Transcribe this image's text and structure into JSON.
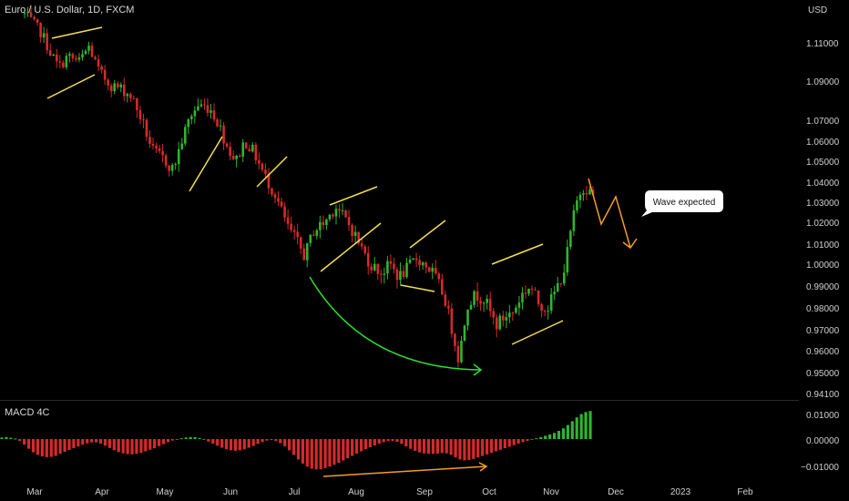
{
  "header": {
    "symbol_title": "Euro / U.S. Dollar, 1D, FXCM",
    "currency": "USD"
  },
  "chart_data": [
    {
      "type": "candlestick",
      "title": "Euro / U.S. Dollar, 1D, FXCM",
      "ylabel": "USD",
      "ylim": [
        0.941,
        1.125
      ],
      "yticks": [
        "1.11000",
        "1.09000",
        "1.07000",
        "1.06000",
        "1.05000",
        "1.04000",
        "1.03000",
        "1.02000",
        "1.01000",
        "1.00000",
        "0.99000",
        "0.98000",
        "0.97000",
        "0.96000",
        "0.95000",
        "0.94100"
      ],
      "xticks": [
        "Mar",
        "Apr",
        "May",
        "Jun",
        "Jul",
        "Aug",
        "Sep",
        "Oct",
        "Nov",
        "Dec",
        "2023",
        "Feb"
      ],
      "path": [
        [
          0,
          1.125
        ],
        [
          12,
          1.115
        ],
        [
          18,
          1.105
        ],
        [
          24,
          1.097
        ],
        [
          30,
          1.103
        ],
        [
          38,
          1.1
        ],
        [
          45,
          1.108
        ],
        [
          52,
          1.095
        ],
        [
          60,
          1.088
        ],
        [
          68,
          1.086
        ],
        [
          75,
          1.082
        ],
        [
          82,
          1.07
        ],
        [
          90,
          1.055
        ],
        [
          96,
          1.052
        ],
        [
          104,
          1.046
        ],
        [
          110,
          1.06
        ],
        [
          116,
          1.072
        ],
        [
          122,
          1.078
        ],
        [
          130,
          1.076
        ],
        [
          136,
          1.068
        ],
        [
          142,
          1.057
        ],
        [
          148,
          1.05
        ],
        [
          154,
          1.06
        ],
        [
          160,
          1.055
        ],
        [
          168,
          1.043
        ],
        [
          176,
          1.033
        ],
        [
          184,
          1.018
        ],
        [
          190,
          1.012
        ],
        [
          196,
          1.004
        ],
        [
          202,
          1.016
        ],
        [
          210,
          1.02
        ],
        [
          218,
          1.028
        ],
        [
          224,
          1.022
        ],
        [
          230,
          1.016
        ],
        [
          236,
          1.008
        ],
        [
          242,
          1.0
        ],
        [
          250,
          0.996
        ],
        [
          256,
          1.0
        ],
        [
          262,
          0.994
        ],
        [
          268,
          0.998
        ],
        [
          274,
          1.003
        ],
        [
          280,
          1.0
        ],
        [
          286,
          0.996
        ],
        [
          294,
          0.985
        ],
        [
          300,
          0.968
        ],
        [
          304,
          0.956
        ],
        [
          310,
          0.982
        ],
        [
          316,
          0.986
        ],
        [
          322,
          0.984
        ],
        [
          330,
          0.972
        ],
        [
          336,
          0.976
        ],
        [
          342,
          0.978
        ],
        [
          348,
          0.986
        ],
        [
          354,
          0.99
        ],
        [
          360,
          0.982
        ],
        [
          366,
          0.98
        ],
        [
          372,
          0.988
        ],
        [
          378,
          0.998
        ],
        [
          384,
          1.022
        ],
        [
          388,
          1.034
        ],
        [
          392,
          1.038
        ],
        [
          398,
          1.033
        ]
      ],
      "annotations": [
        {
          "text": "Wave expected"
        }
      ]
    },
    {
      "type": "histogram",
      "title": "MACD 4C",
      "ylim": [
        -0.014,
        0.013
      ],
      "yticks": [
        "0.01000",
        "0.00000",
        "−0.01000"
      ],
      "values": [
        0.0006,
        0.0008,
        0.0005,
        0.0002,
        -0.0008,
        -0.0022,
        -0.0038,
        -0.0052,
        -0.0062,
        -0.0068,
        -0.0071,
        -0.007,
        -0.0066,
        -0.0058,
        -0.005,
        -0.0043,
        -0.0036,
        -0.0029,
        -0.0022,
        -0.0017,
        -0.0013,
        -0.0013,
        -0.0018,
        -0.0026,
        -0.0035,
        -0.0044,
        -0.0051,
        -0.0056,
        -0.0059,
        -0.006,
        -0.0058,
        -0.0054,
        -0.0048,
        -0.0042,
        -0.0036,
        -0.0028,
        -0.002,
        -0.0012,
        -0.0006,
        -0.0001,
        0.0003,
        0.0006,
        0.0008,
        0.0007,
        0.0004,
        -0.0002,
        -0.001,
        -0.0018,
        -0.0026,
        -0.0034,
        -0.004,
        -0.0044,
        -0.0046,
        -0.0044,
        -0.004,
        -0.0034,
        -0.0027,
        -0.0019,
        -0.0012,
        -0.0006,
        -0.0004,
        -0.0008,
        -0.0016,
        -0.0028,
        -0.0044,
        -0.0062,
        -0.008,
        -0.0096,
        -0.0108,
        -0.0116,
        -0.0119,
        -0.0118,
        -0.0114,
        -0.0108,
        -0.0101,
        -0.0093,
        -0.0084,
        -0.0075,
        -0.0066,
        -0.0057,
        -0.0048,
        -0.004,
        -0.0032,
        -0.0025,
        -0.0018,
        -0.0012,
        -0.0008,
        -0.0007,
        -0.0011,
        -0.0019,
        -0.0029,
        -0.0038,
        -0.0046,
        -0.0052,
        -0.0056,
        -0.0058,
        -0.0058,
        -0.0057,
        -0.0055,
        -0.0056,
        -0.0062,
        -0.0072,
        -0.008,
        -0.0084,
        -0.0082,
        -0.0078,
        -0.0072,
        -0.0066,
        -0.006,
        -0.0054,
        -0.0048,
        -0.0042,
        -0.0036,
        -0.003,
        -0.0024,
        -0.0018,
        -0.0012,
        -0.0007,
        -0.0002,
        0.0003,
        0.0008,
        0.0013,
        0.0018,
        0.0024,
        0.0032,
        0.0042,
        0.0055,
        0.007,
        0.0085,
        0.0098,
        0.0106,
        0.011
      ]
    }
  ]
}
